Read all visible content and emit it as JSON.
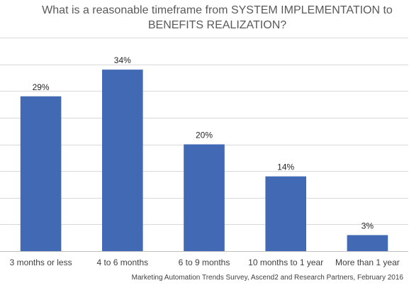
{
  "chart_data": {
    "type": "bar",
    "title": "What is a reasonable timeframe from SYSTEM IMPLEMENTATION to BENEFITS REALIZATION?",
    "title_lines": [
      "What is a reasonable timeframe from SYSTEM IMPLEMENTATION to",
      "BENEFITS REALIZATION?"
    ],
    "categories": [
      "3 months or less",
      "4 to 6 months",
      "6 to 9 months",
      "10 months to 1 year",
      "More than 1 year"
    ],
    "values": [
      29,
      34,
      20,
      14,
      3
    ],
    "data_labels": [
      "29%",
      "34%",
      "20%",
      "14%",
      "3%"
    ],
    "unit": "%",
    "ylim": [
      0,
      40
    ],
    "grid": true,
    "legend": "none",
    "bar_color": "#4169B4",
    "source": "Marketing Automation Trends Survey, Ascend2 and Research Partners, February 2016"
  }
}
